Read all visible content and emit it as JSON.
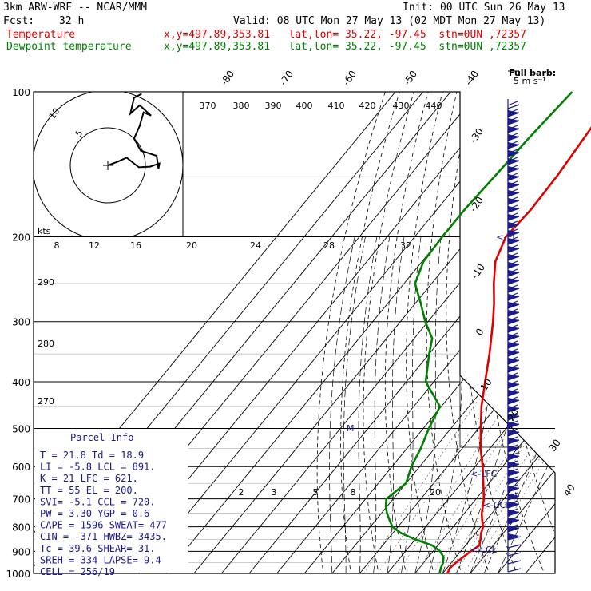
{
  "header": {
    "model": "3km ARW-WRF -- NCAR/MMM",
    "init": "Init: 00 UTC Sun 26 May 13",
    "fcst_label": "Fcst:",
    "fcst_value": "32 h",
    "valid": "Valid: 08 UTC Mon 27 May 13 (02 MDT Mon 27 May 13)",
    "temp_label": "Temperature",
    "temp_info": "x,y=497.89,353.81   lat,lon= 35.22, -97.45  stn=0UN ,72357",
    "dew_label": "Dewpoint temperature",
    "dew_info": "x,y=497.89,353.81   lat,lon= 35.22, -97.45  stn=0UN ,72357"
  },
  "barb_legend": {
    "line1": "Full barb:",
    "line2": "5 m s⁻¹"
  },
  "hodograph": {
    "ring_labels": [
      "5",
      "10"
    ],
    "units": "kts"
  },
  "parcel_info": {
    "title": "Parcel Info",
    "rows": [
      "T  =   21.8  Td =  18.9",
      "LI =   -5.8  LCL =  891.",
      "K  =     21  LFC =  621.",
      "TT =     55  EL  =  200.",
      "SVI=   -5.1  CCL =  720.",
      "PW =   3.30  YGP =   0.6",
      "CAPE =  1596  SWEAT=  477",
      "CIN =   -371  HWBZ= 3435.",
      "Tc =   39.6  SHEAR=  31.",
      "SREH =   334  LAPSE=  9.4",
      "CELL = 256/19"
    ]
  },
  "chart_data": {
    "type": "line",
    "title": "Skew-T log-P diagram",
    "pressure_levels": [
      "100",
      "200",
      "300",
      "400",
      "500",
      "600",
      "700",
      "800",
      "900",
      "1000"
    ],
    "isotherm_labels": [
      "-80",
      "-70",
      "-60",
      "-50",
      "-40",
      "-30",
      "-20",
      "-10",
      "0",
      "10",
      "20",
      "30",
      "40"
    ],
    "theta_labels": [
      "370",
      "380",
      "390",
      "400",
      "410",
      "420",
      "430",
      "440"
    ],
    "theta_labels_left": [
      "290",
      "280",
      "270"
    ],
    "mixing_ratio_labels_top": [
      "8",
      "12",
      "16",
      "20",
      "24",
      "28",
      "32"
    ],
    "mixing_ratio_labels_low": [
      "2",
      "3",
      "5",
      "8",
      "20"
    ],
    "levels_annot": {
      "el": "EL",
      "lfc": "LFC",
      "ccl": "CCL",
      "lcl": "LCL",
      "m": "M"
    },
    "series": [
      {
        "name": "Temperature",
        "color": "#e00000",
        "points": [
          {
            "p": 1000,
            "t": 21.8
          },
          {
            "p": 975,
            "t": 21.0
          },
          {
            "p": 950,
            "t": 21.6
          },
          {
            "p": 925,
            "t": 22.6
          },
          {
            "p": 900,
            "t": 23.6
          },
          {
            "p": 875,
            "t": 25.0
          },
          {
            "p": 850,
            "t": 23.6
          },
          {
            "p": 825,
            "t": 22.0
          },
          {
            "p": 800,
            "t": 20.8
          },
          {
            "p": 775,
            "t": 18.5
          },
          {
            "p": 750,
            "t": 16.3
          },
          {
            "p": 725,
            "t": 14.6
          },
          {
            "p": 700,
            "t": 12.8
          },
          {
            "p": 650,
            "t": 8.0
          },
          {
            "p": 600,
            "t": 2.8
          },
          {
            "p": 550,
            "t": -3.4
          },
          {
            "p": 500,
            "t": -9.2
          },
          {
            "p": 450,
            "t": -15.5
          },
          {
            "p": 400,
            "t": -21.5
          },
          {
            "p": 350,
            "t": -28.2
          },
          {
            "p": 300,
            "t": -36.5
          },
          {
            "p": 275,
            "t": -41.5
          },
          {
            "p": 250,
            "t": -47.5
          },
          {
            "p": 225,
            "t": -53.5
          },
          {
            "p": 200,
            "t": -57.0
          },
          {
            "p": 175,
            "t": -56.0
          },
          {
            "p": 150,
            "t": -56.5
          },
          {
            "p": 125,
            "t": -58.0
          },
          {
            "p": 100,
            "t": -60.0
          }
        ]
      },
      {
        "name": "Dewpoint temperature",
        "color": "#008000",
        "points": [
          {
            "p": 1000,
            "t": 18.9
          },
          {
            "p": 975,
            "t": 17.8
          },
          {
            "p": 950,
            "t": 17.0
          },
          {
            "p": 925,
            "t": 15.5
          },
          {
            "p": 900,
            "t": 12.6
          },
          {
            "p": 875,
            "t": 8.0
          },
          {
            "p": 850,
            "t": 0.0
          },
          {
            "p": 825,
            "t": -7.0
          },
          {
            "p": 800,
            "t": -12.0
          },
          {
            "p": 775,
            "t": -15.0
          },
          {
            "p": 750,
            "t": -18.0
          },
          {
            "p": 725,
            "t": -20.5
          },
          {
            "p": 700,
            "t": -22.5
          },
          {
            "p": 650,
            "t": -20.0
          },
          {
            "p": 600,
            "t": -23.0
          },
          {
            "p": 550,
            "t": -25.0
          },
          {
            "p": 500,
            "t": -28.0
          },
          {
            "p": 450,
            "t": -30.5
          },
          {
            "p": 400,
            "t": -43.0
          },
          {
            "p": 350,
            "t": -50.0
          },
          {
            "p": 325,
            "t": -53.5
          },
          {
            "p": 300,
            "t": -61.0
          },
          {
            "p": 275,
            "t": -68.0
          },
          {
            "p": 250,
            "t": -76.0
          },
          {
            "p": 225,
            "t": -79.5
          },
          {
            "p": 200,
            "t": -80.0
          },
          {
            "p": 175,
            "t": -80.0
          },
          {
            "p": 150,
            "t": -79.0
          },
          {
            "p": 125,
            "t": -78.0
          },
          {
            "p": 100,
            "t": -76.0
          }
        ]
      }
    ],
    "hodograph_trace": [
      [
        0,
        0
      ],
      [
        1.1,
        0.6
      ],
      [
        2.0,
        1.2
      ],
      [
        3.3,
        -0.3
      ],
      [
        4.5,
        -0.2
      ],
      [
        5.5,
        0.3
      ],
      [
        5.4,
        -0.5
      ],
      [
        5.2,
        1.5
      ],
      [
        3.5,
        2.3
      ],
      [
        2.8,
        4.2
      ],
      [
        3.4,
        6.2
      ],
      [
        3.8,
        8.3
      ],
      [
        4.6,
        7.8
      ],
      [
        3.4,
        9.4
      ],
      [
        2.4,
        8.1
      ],
      [
        2.8,
        10.6
      ],
      [
        3.6,
        11.2
      ]
    ]
  }
}
